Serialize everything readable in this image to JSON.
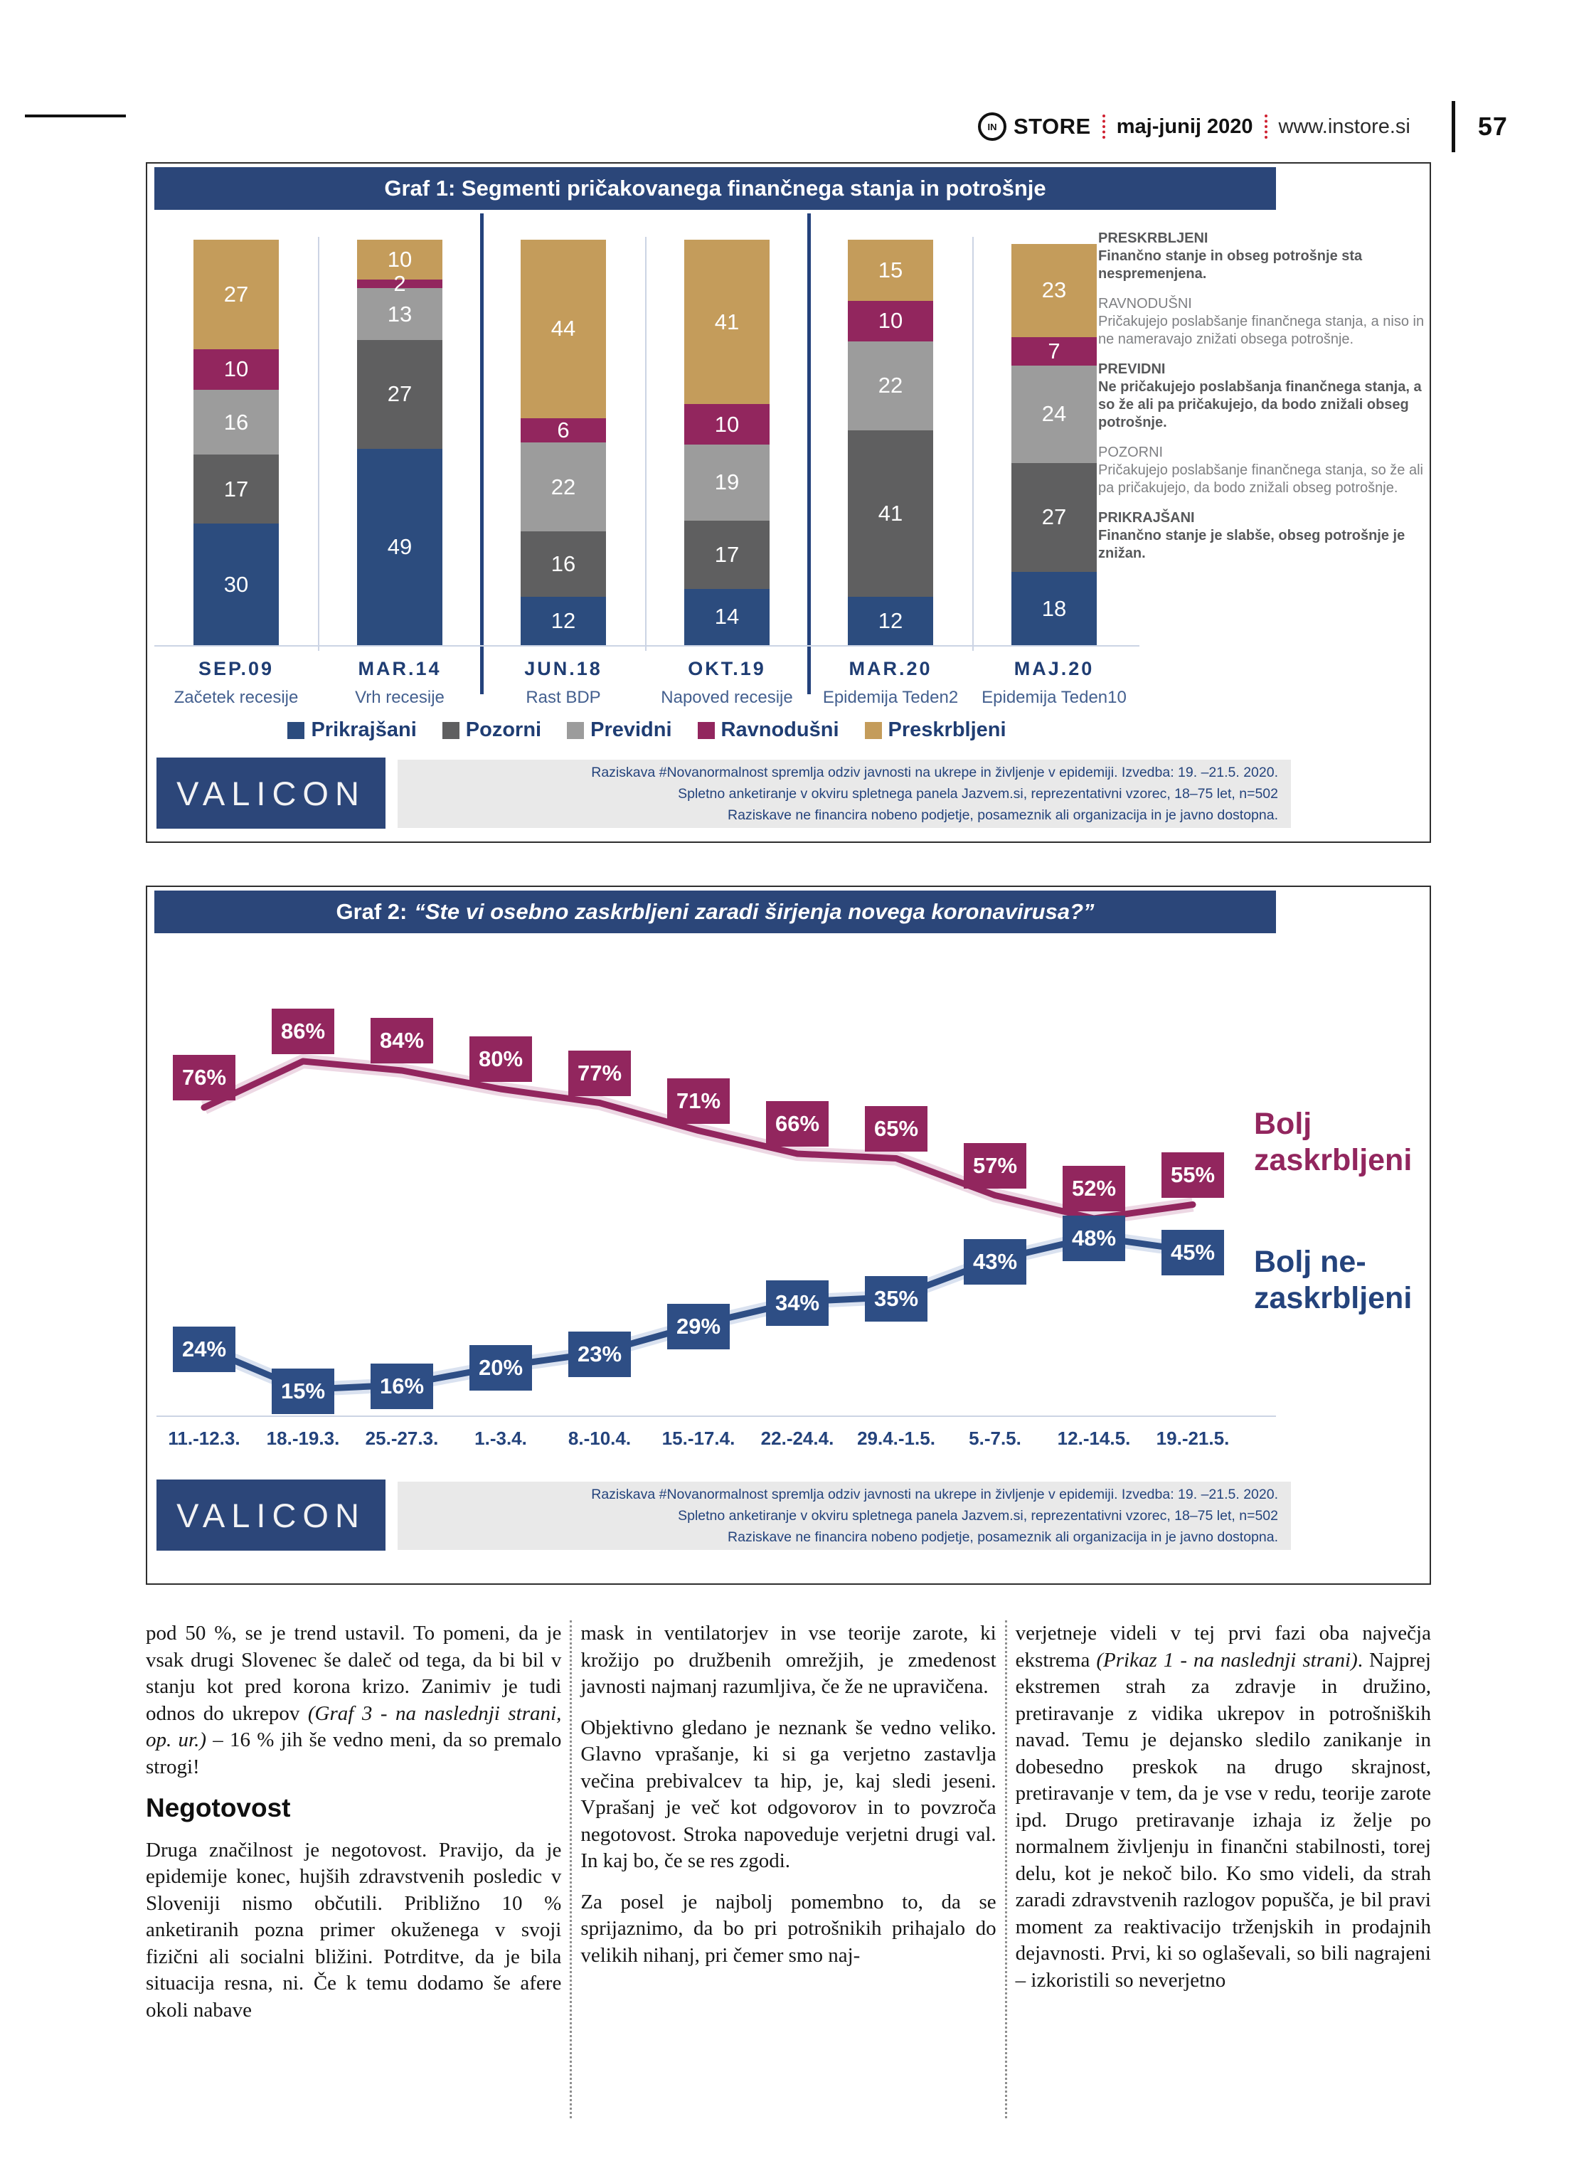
{
  "header": {
    "logo_monogram": "IN",
    "brand": "STORE",
    "issue": "maj-junij 2020",
    "site": "www.instore.si",
    "page_number": "57"
  },
  "graf1": {
    "title": "Graf 1: Segmenti pričakovanega finančnega stanja in potrošnje",
    "definitions": [
      {
        "name": "PRESKRBLJENI",
        "desc": "Finančno stanje in obseg potrošnje sta nespremenjena.",
        "bold": true
      },
      {
        "name": "RAVNODUŠNI",
        "desc": "Pričakujejo poslabšanje finančnega stanja, a niso in ne nameravajo znižati obsega potrošnje.",
        "bold": false
      },
      {
        "name": "PREVIDNI",
        "desc": "Ne pričakujejo poslabšanja finančnega stanja, a so že ali pa pričakujejo, da bodo znižali obseg potrošnje.",
        "bold": true
      },
      {
        "name": "POZORNI",
        "desc": "Pričakujejo poslabšanje finančnega stanja, so že ali pa pričakujejo, da bodo znižali obseg potrošnje.",
        "bold": false
      },
      {
        "name": "PRIKRAJŠANI",
        "desc": "Finančno stanje je slabše, obseg potrošnje je znižan.",
        "bold": true
      }
    ]
  },
  "graf2": {
    "title_prefix": "Graf 2:",
    "title_quote": "“Ste vi osebno zaskrbljeni zaradi širjenja novega koronavirusa?”",
    "series_labels": [
      "Bolj zaskrbljeni",
      "Bolj ne-zaskrbljeni"
    ]
  },
  "source": {
    "logo": "VALICON",
    "lines": [
      "Raziskava #Novanormalnost spremlja odziv javnosti na ukrepe in življenje v epidemiji. Izvedba: 19. –21.5. 2020.",
      "Spletno anketiranje v okviru spletnega panela Jazvem.si, reprezentativni vzorec, 18–75 let, n=502",
      "Raziskave ne financira nobeno podjetje, posameznik ali organizacija in je javno dostopna."
    ]
  },
  "article": {
    "col1": {
      "p1a": "pod 50 %, se je trend ustavil. To pomeni, da je vsak drugi Slovenec še daleč od tega, da bi bil v stanju kot pred korona krizo. Zanimiv je tudi odnos do ukrepov ",
      "p1it": "(Graf 3 - na naslednji strani, op. ur.)",
      "p1b": " – 16 % jih še vedno meni, da so premalo strogi!",
      "heading": "Negotovost",
      "p2": "Druga značilnost je negotovost. Pravijo, da je epidemije konec, hujših zdravstvenih posledic v Sloveniji nismo občutili. Približno 10 % anketiranih pozna primer okuženega v svoji fizični ali socialni bližini. Potrditve, da je bila situacija resna, ni. Če k temu dodamo še afere okoli nabave"
    },
    "col2": {
      "p1": "mask in ventilatorjev in vse teorije zarote, ki krožijo po družbenih omrežjih, je zmedenost javnosti najmanj razumljiva, če že ne upravičena.",
      "p2": "Objektivno gledano je neznank še vedno veliko. Glavno vprašanje, ki si ga verjetno zastavlja večina prebivalcev ta hip, je, kaj sledi jeseni. Vprašanj je več kot odgovorov in to povzroča negotovost. Stroka napoveduje verjetni drugi val. In kaj bo, če se res zgodi.",
      "p3": "Za posel je najbolj pomembno to, da se sprijaznimo, da bo pri potrošnikih prihajalo do velikih nihanj, pri čemer smo naj-"
    },
    "col3": {
      "p1a": "verjetneje videli v tej prvi fazi oba največja ekstrema ",
      "p1it": "(Prikaz 1 - na naslednji strani)",
      "p1b": ". Najprej ekstremen strah za zdravje in družino, pretiravanje z vidika ukrepov in potrošniških navad. Temu je dejansko sledilo zanikanje in dobesedno preskok na drugo skrajnost, pretiravanje v tem, da je vse v redu, teorije zarote ipd. Drugo pretiravanje izhaja iz želje po normalnem življenju in finančni stabilnosti, torej delu, kot je nekoč bilo. Ko smo videli, da strah zaradi zdravstvenih razlogov popušča, je bil pravi moment za reaktivacijo trženjskih in prodajnih dejavnosti. Prvi, ki so oglaševali, so bili nagrajeni – izkoristili so neverjetno"
    }
  },
  "chart_data": [
    {
      "type": "bar",
      "stacked": true,
      "title": "Graf 1: Segmenti pričakovanega finančnega stanja in potrošnje",
      "categories": [
        "SEP.09",
        "MAR.14",
        "JUN.18",
        "OKT.19",
        "MAR.20",
        "MAJ.20"
      ],
      "category_sublabels": [
        "Začetek recesije",
        "Vrh recesije",
        "Rast BDP",
        "Napoved recesije",
        "Epidemija Teden2",
        "Epidemija Teden10"
      ],
      "series": [
        {
          "name": "Prikrajšani",
          "color": "#2c4c7e",
          "values": [
            30,
            49,
            12,
            14,
            12,
            18
          ]
        },
        {
          "name": "Pozorni",
          "color": "#5f5f60",
          "values": [
            17,
            27,
            16,
            17,
            41,
            27
          ]
        },
        {
          "name": "Previdni",
          "color": "#9c9c9c",
          "values": [
            16,
            13,
            22,
            19,
            22,
            24
          ]
        },
        {
          "name": "Ravnodušni",
          "color": "#92265e",
          "values": [
            10,
            2,
            6,
            10,
            10,
            7
          ]
        },
        {
          "name": "Preskrbljeni",
          "color": "#c49c5b",
          "values": [
            27,
            10,
            44,
            41,
            15,
            23
          ]
        }
      ],
      "ylim": [
        0,
        100
      ],
      "legend_position": "bottom",
      "grid": false
    },
    {
      "type": "line",
      "title": "Graf 2: “Ste vi osebno zaskrbljeni zaradi širjenja novega koronavirusa?”",
      "x": [
        "11.-12.3.",
        "18.-19.3.",
        "25.-27.3.",
        "1.-3.4.",
        "8.-10.4.",
        "15.-17.4.",
        "22.-24.4.",
        "29.4.-1.5.",
        "5.-7.5.",
        "12.-14.5.",
        "19.-21.5."
      ],
      "series": [
        {
          "name": "Bolj zaskrbljeni",
          "color": "#92265e",
          "glow": "#d8a9c4",
          "values": [
            76,
            86,
            84,
            80,
            77,
            71,
            66,
            65,
            57,
            52,
            55
          ]
        },
        {
          "name": "Bolj ne-zaskrbljeni",
          "color": "#2e4e85",
          "glow": "#aebfdd",
          "values": [
            24,
            15,
            16,
            20,
            23,
            29,
            34,
            35,
            43,
            48,
            45
          ]
        }
      ],
      "ylim": [
        0,
        100
      ],
      "legend_position": "right",
      "grid": false
    }
  ]
}
